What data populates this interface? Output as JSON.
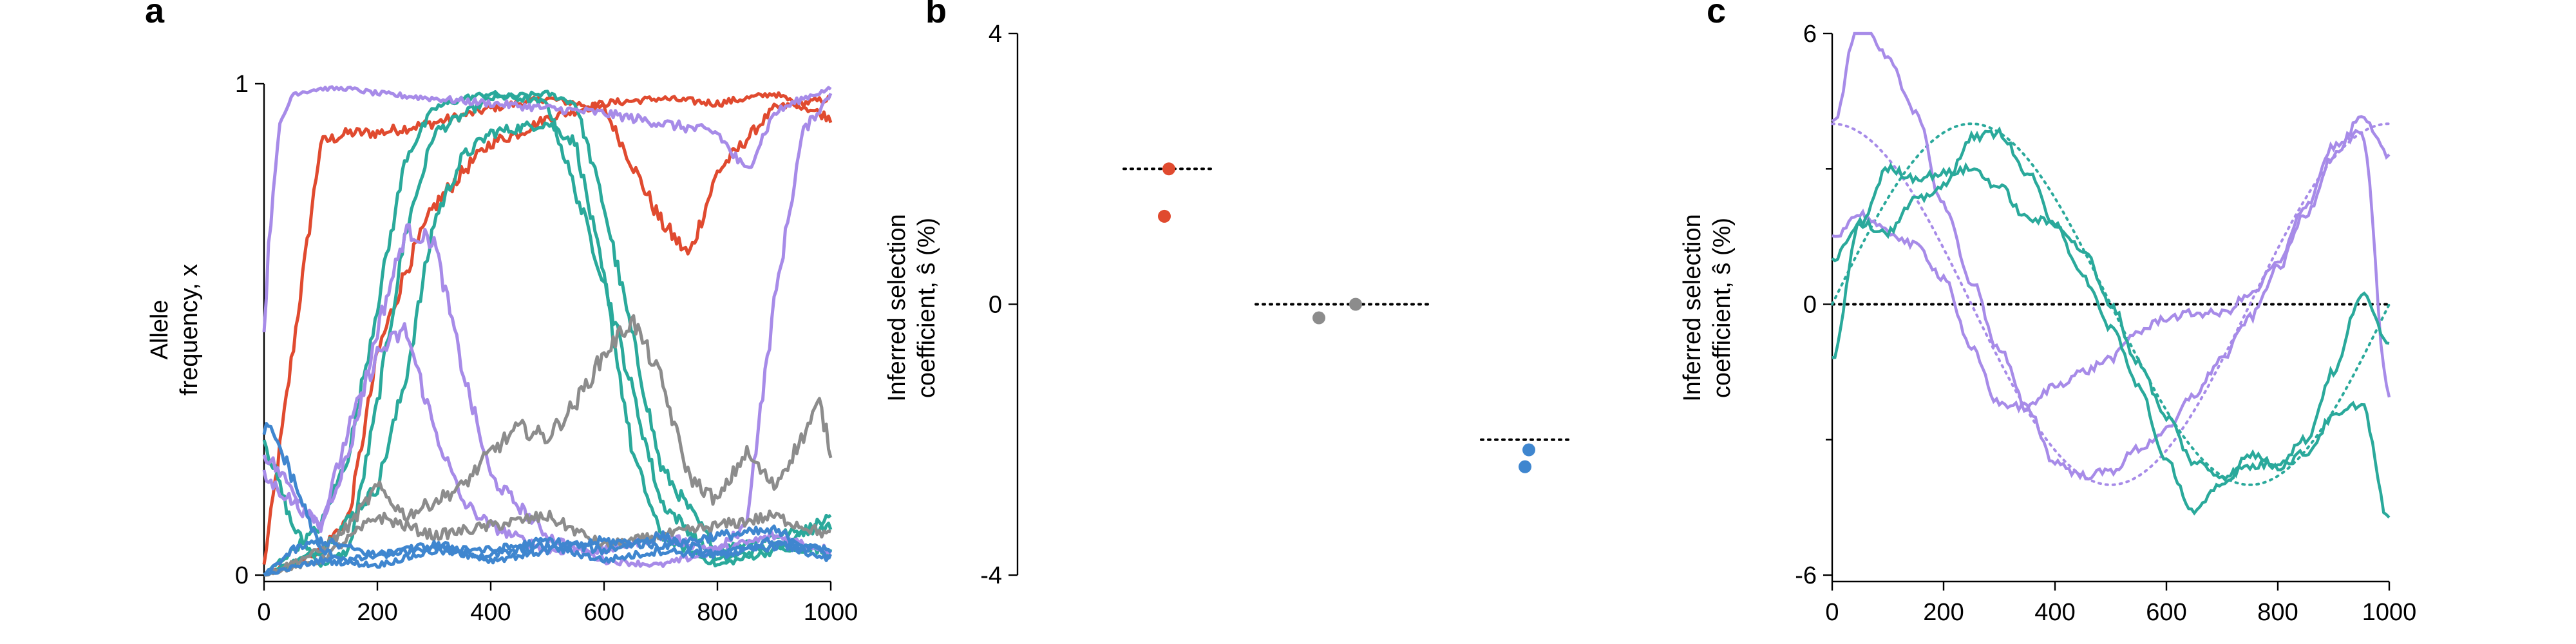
{
  "colors": {
    "red": "#e04a2f",
    "grey": "#8c8c8c",
    "teal": "#2aa99b",
    "purple": "#a78be8",
    "blue": "#3f86cf",
    "axis": "#000000",
    "reference": "#000000"
  },
  "chart_data": [
    {
      "panel_label": "a",
      "type": "line",
      "xlabel": "",
      "ylabel_lines": [
        "Allele",
        "frequency, x"
      ],
      "xlim": [
        0,
        1000
      ],
      "ylim": [
        0,
        1
      ],
      "xticks": [
        "0",
        "200",
        "400",
        "600",
        "800",
        "1000"
      ],
      "yticks": [
        "0",
        "1"
      ],
      "grid": false,
      "series": [
        {
          "color_key": "red",
          "x": [
            0,
            50,
            100,
            150,
            200,
            300,
            400,
            500,
            600,
            700,
            750,
            800,
            900,
            1000
          ],
          "y": [
            0.02,
            0.45,
            0.88,
            0.9,
            0.9,
            0.92,
            0.95,
            0.97,
            0.95,
            0.72,
            0.65,
            0.82,
            0.95,
            0.97
          ]
        },
        {
          "color_key": "red",
          "x": [
            0,
            100,
            150,
            200,
            250,
            300,
            350,
            400,
            450,
            500,
            600,
            700,
            800,
            900,
            1000
          ],
          "y": [
            0.0,
            0.05,
            0.12,
            0.45,
            0.62,
            0.75,
            0.82,
            0.88,
            0.9,
            0.93,
            0.96,
            0.97,
            0.96,
            0.98,
            0.93
          ]
        },
        {
          "color_key": "teal",
          "x": [
            0,
            50,
            100,
            150,
            200,
            250,
            300,
            400,
            500,
            550,
            600,
            700,
            800,
            900,
            1000
          ],
          "y": [
            0.28,
            0.1,
            0.02,
            0.05,
            0.35,
            0.7,
            0.9,
            0.97,
            0.98,
            0.96,
            0.75,
            0.22,
            0.05,
            0.08,
            0.1
          ]
        },
        {
          "color_key": "teal",
          "x": [
            0,
            100,
            200,
            250,
            300,
            350,
            400,
            500,
            550,
            600,
            650,
            700,
            800,
            900,
            1000
          ],
          "y": [
            0.0,
            0.05,
            0.18,
            0.4,
            0.72,
            0.85,
            0.9,
            0.92,
            0.88,
            0.6,
            0.25,
            0.08,
            0.02,
            0.05,
            0.12
          ]
        },
        {
          "color_key": "teal",
          "x": [
            0,
            100,
            150,
            200,
            250,
            300,
            350,
            400,
            500,
            600,
            700,
            800,
            900,
            1000
          ],
          "y": [
            0.0,
            0.1,
            0.25,
            0.55,
            0.85,
            0.95,
            0.97,
            0.98,
            0.96,
            0.6,
            0.15,
            0.03,
            0.06,
            0.05
          ]
        },
        {
          "color_key": "purple",
          "x": [
            0,
            10,
            25,
            50,
            100,
            150,
            200,
            300,
            400,
            500,
            600,
            700,
            800,
            850,
            900,
            950,
            1000
          ],
          "y": [
            0.5,
            0.7,
            0.9,
            0.98,
            0.99,
            0.99,
            0.98,
            0.97,
            0.96,
            0.95,
            0.94,
            0.92,
            0.9,
            0.82,
            0.94,
            0.97,
            0.99
          ]
        },
        {
          "color_key": "purple",
          "x": [
            0,
            100,
            150,
            200,
            250,
            300,
            350,
            400,
            500,
            600,
            700,
            800,
            850,
            900,
            950,
            1000
          ],
          "y": [
            0.2,
            0.1,
            0.25,
            0.5,
            0.7,
            0.68,
            0.42,
            0.2,
            0.08,
            0.03,
            0.02,
            0.05,
            0.1,
            0.55,
            0.9,
            0.98
          ]
        },
        {
          "color_key": "purple",
          "x": [
            0,
            100,
            150,
            200,
            250,
            300,
            350,
            400,
            500,
            600,
            700,
            800,
            900,
            1000
          ],
          "y": [
            0.25,
            0.1,
            0.3,
            0.45,
            0.5,
            0.3,
            0.15,
            0.1,
            0.05,
            0.05,
            0.08,
            0.05,
            0.08,
            0.05
          ]
        },
        {
          "color_key": "grey",
          "x": [
            0,
            100,
            150,
            200,
            250,
            300,
            350,
            400,
            450,
            500,
            550,
            600,
            650,
            700,
            750,
            800,
            850,
            900,
            950,
            980,
            1000
          ],
          "y": [
            0.0,
            0.05,
            0.1,
            0.18,
            0.12,
            0.15,
            0.18,
            0.25,
            0.3,
            0.28,
            0.35,
            0.45,
            0.52,
            0.4,
            0.2,
            0.15,
            0.25,
            0.18,
            0.28,
            0.35,
            0.25
          ]
        },
        {
          "color_key": "grey",
          "x": [
            0,
            100,
            200,
            300,
            400,
            500,
            600,
            700,
            800,
            900,
            1000
          ],
          "y": [
            0.0,
            0.03,
            0.12,
            0.08,
            0.1,
            0.12,
            0.06,
            0.08,
            0.1,
            0.12,
            0.08
          ]
        },
        {
          "color_key": "blue",
          "x": [
            0,
            20,
            50,
            100,
            150,
            200,
            300,
            400,
            500,
            600,
            700,
            800,
            900,
            1000
          ],
          "y": [
            0.3,
            0.28,
            0.2,
            0.05,
            0.03,
            0.04,
            0.06,
            0.05,
            0.07,
            0.05,
            0.08,
            0.04,
            0.06,
            0.05
          ]
        },
        {
          "color_key": "blue",
          "x": [
            0,
            50,
            100,
            200,
            300,
            400,
            500,
            600,
            700,
            800,
            900,
            1000
          ],
          "y": [
            0.0,
            0.05,
            0.07,
            0.04,
            0.06,
            0.03,
            0.05,
            0.07,
            0.06,
            0.08,
            0.09,
            0.04
          ]
        },
        {
          "color_key": "blue",
          "x": [
            0,
            100,
            200,
            300,
            400,
            500,
            600,
            700,
            800,
            900,
            1000
          ],
          "y": [
            0.0,
            0.03,
            0.02,
            0.05,
            0.04,
            0.06,
            0.03,
            0.05,
            0.04,
            0.07,
            0.03
          ]
        }
      ]
    },
    {
      "panel_label": "b",
      "type": "scatter",
      "xlabel": "",
      "ylabel_lines": [
        "Inferred selection",
        "coefficient, ŝ (%)"
      ],
      "ylim": [
        -4,
        4
      ],
      "yticks": [
        "-4",
        "0",
        "4"
      ],
      "grid": false,
      "groups": [
        {
          "color_key": "red",
          "true_value": 2.0,
          "points": [
            2.0,
            1.3
          ]
        },
        {
          "color_key": "grey",
          "true_value": 0.0,
          "points": [
            0.0,
            -0.2
          ]
        },
        {
          "color_key": "blue",
          "true_value": -2.0,
          "points": [
            -2.15,
            -2.4
          ]
        }
      ]
    },
    {
      "panel_label": "c",
      "type": "line",
      "xlabel": "",
      "ylabel_lines": [
        "Inferred selection",
        "coefficient, ŝ (%)"
      ],
      "xlim": [
        0,
        1000
      ],
      "ylim": [
        -6,
        6
      ],
      "xticks": [
        "0",
        "200",
        "400",
        "600",
        "800",
        "1000"
      ],
      "yticks": [
        "-6",
        "0",
        "6"
      ],
      "grid": false,
      "reference_y": 0,
      "true_curves": [
        {
          "color_key": "purple",
          "amplitude": 4.0,
          "phase": "cosine",
          "period": 1000
        },
        {
          "color_key": "teal",
          "amplitude": 4.0,
          "phase": "sine",
          "period": 1000
        }
      ],
      "series": [
        {
          "color_key": "purple",
          "x": [
            0,
            50,
            100,
            150,
            200,
            250,
            300,
            350,
            400,
            450,
            500,
            550,
            600,
            650,
            700,
            750,
            800,
            850,
            900,
            950,
            1000
          ],
          "y": [
            4.0,
            6.3,
            5.5,
            4.2,
            2.2,
            0.5,
            -1.0,
            -2.3,
            -3.5,
            -3.8,
            -3.7,
            -3.2,
            -2.8,
            -2.0,
            -1.2,
            -0.3,
            0.8,
            2.0,
            3.3,
            4.1,
            3.3
          ]
        },
        {
          "color_key": "purple",
          "x": [
            0,
            50,
            100,
            150,
            200,
            250,
            300,
            350,
            400,
            450,
            500,
            550,
            600,
            650,
            700,
            750,
            800,
            850,
            900,
            950,
            1000
          ],
          "y": [
            1.5,
            2.0,
            1.6,
            1.3,
            0.6,
            -1.0,
            -2.2,
            -2.3,
            -1.8,
            -1.5,
            -1.2,
            -0.6,
            -0.3,
            -0.2,
            -0.2,
            0.2,
            0.9,
            2.2,
            3.5,
            3.8,
            -2.0
          ]
        },
        {
          "color_key": "teal",
          "x": [
            0,
            50,
            100,
            150,
            200,
            250,
            300,
            350,
            400,
            450,
            500,
            550,
            600,
            650,
            700,
            750,
            800,
            850,
            900,
            950,
            1000
          ],
          "y": [
            -1.2,
            1.8,
            3.0,
            2.8,
            2.9,
            3.0,
            2.6,
            1.9,
            1.8,
            1.2,
            0.0,
            -1.3,
            -2.5,
            -3.5,
            -3.8,
            -3.6,
            -3.5,
            -3.0,
            -1.5,
            0.2,
            -0.8
          ]
        },
        {
          "color_key": "teal",
          "x": [
            0,
            50,
            100,
            150,
            200,
            250,
            300,
            350,
            400,
            450,
            500,
            550,
            600,
            650,
            700,
            750,
            800,
            850,
            900,
            950,
            1000
          ],
          "y": [
            1.0,
            1.8,
            1.6,
            2.3,
            2.6,
            3.7,
            3.8,
            2.9,
            1.8,
            0.6,
            -0.5,
            -1.8,
            -3.5,
            -4.6,
            -4.0,
            -3.3,
            -3.6,
            -3.3,
            -2.5,
            -2.2,
            -4.8
          ]
        }
      ]
    }
  ]
}
